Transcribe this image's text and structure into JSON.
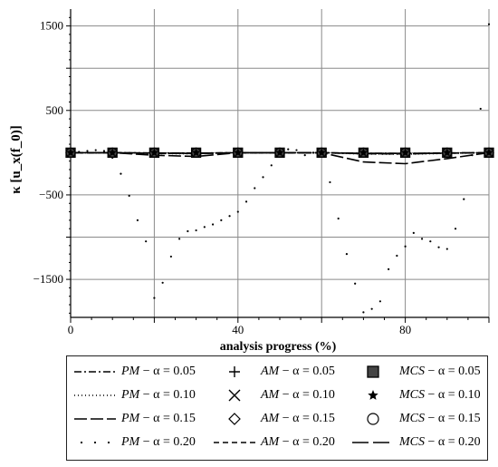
{
  "chart_data": {
    "type": "line",
    "xlabel": "analysis progress (%)",
    "ylabel": "κ [u_x(f_0)]",
    "xlim": [
      0,
      100
    ],
    "ylim": [
      -1950,
      1700
    ],
    "x_ticks": [
      0,
      40,
      80
    ],
    "x_tick_labels": [
      "0",
      "40",
      "80"
    ],
    "x_grid": [
      0,
      20,
      40,
      60,
      80,
      100
    ],
    "y_ticks": [
      1500,
      500,
      -500,
      -1500
    ],
    "y_tick_labels": [
      "1500",
      "500",
      "−500",
      "−1500"
    ],
    "y_grid": [
      1500,
      1000,
      500,
      0,
      -500,
      -1000,
      -1500
    ],
    "grid": true,
    "legend_position": "bottom",
    "series": [
      {
        "name": "PM − α = 0.05",
        "style": "dashdot",
        "x": [
          0,
          10,
          20,
          30,
          40,
          50,
          60,
          70,
          80,
          90,
          100
        ],
        "y": [
          0,
          0,
          -4,
          -6,
          0,
          0,
          0,
          -8,
          -10,
          -4,
          0
        ]
      },
      {
        "name": "PM − α = 0.10",
        "style": "dotted",
        "x": [
          0,
          10,
          20,
          30,
          40,
          50,
          60,
          70,
          80,
          90,
          100
        ],
        "y": [
          0,
          0,
          -10,
          -12,
          0,
          0,
          0,
          -15,
          -18,
          -8,
          0
        ]
      },
      {
        "name": "PM − α = 0.15",
        "style": "longdash",
        "x": [
          0,
          10,
          20,
          30,
          40,
          50,
          60,
          70,
          80,
          90,
          100
        ],
        "y": [
          0,
          0,
          -30,
          -45,
          0,
          0,
          0,
          -110,
          -130,
          -70,
          0
        ]
      },
      {
        "name": "PM − α = 0.20",
        "style": "sparse-dots",
        "x": [
          0,
          2,
          4,
          6,
          8,
          10,
          12,
          14,
          16,
          18,
          20,
          22,
          24,
          26,
          28,
          30,
          32,
          34,
          36,
          38,
          40,
          42,
          44,
          46,
          48,
          50,
          52,
          54,
          56,
          58,
          60,
          62,
          64,
          66,
          68,
          70,
          72,
          74,
          76,
          78,
          80,
          82,
          84,
          86,
          88,
          90,
          92,
          94,
          96,
          98,
          100
        ],
        "y": [
          0,
          10,
          20,
          30,
          20,
          -60,
          -250,
          -510,
          -800,
          -1050,
          -1720,
          -1540,
          -1230,
          -1020,
          -930,
          -920,
          -880,
          -850,
          -800,
          -750,
          -700,
          -580,
          -420,
          -290,
          -150,
          20,
          40,
          30,
          -30,
          0,
          0,
          -350,
          -780,
          -1200,
          -1550,
          -1890,
          -1850,
          -1760,
          -1380,
          -1220,
          -1110,
          -950,
          -1020,
          -1050,
          -1120,
          -1140,
          -900,
          -550,
          -30,
          520,
          1520
        ]
      },
      {
        "name": "AM − α = 0.05",
        "marker": "+",
        "x": [
          0,
          10,
          20,
          30,
          40,
          50,
          60,
          70,
          80,
          90,
          100
        ],
        "y": [
          0,
          0,
          0,
          0,
          0,
          0,
          0,
          0,
          0,
          0,
          0
        ]
      },
      {
        "name": "AM − α = 0.10",
        "marker": "×",
        "x": [
          0,
          10,
          20,
          30,
          40,
          50,
          60,
          70,
          80,
          90,
          100
        ],
        "y": [
          0,
          0,
          0,
          0,
          0,
          0,
          0,
          0,
          0,
          0,
          0
        ]
      },
      {
        "name": "AM − α = 0.15",
        "marker": "◇",
        "x": [
          0,
          10,
          20,
          30,
          40,
          50,
          60,
          70,
          80,
          90,
          100
        ],
        "y": [
          0,
          0,
          0,
          0,
          0,
          0,
          0,
          0,
          0,
          0,
          0
        ]
      },
      {
        "name": "AM − α = 0.20",
        "style": "dash",
        "x": [
          0,
          10,
          20,
          30,
          40,
          50,
          60,
          70,
          80,
          90,
          100
        ],
        "y": [
          0,
          0,
          -5,
          -8,
          0,
          0,
          0,
          -10,
          -12,
          -5,
          0
        ]
      },
      {
        "name": "MCS − α = 0.05",
        "marker": "□",
        "x": [
          0,
          10,
          20,
          30,
          40,
          50,
          60,
          70,
          80,
          90,
          100
        ],
        "y": [
          0,
          0,
          0,
          0,
          0,
          0,
          0,
          0,
          0,
          0,
          0
        ]
      },
      {
        "name": "MCS − α = 0.10",
        "marker": "★",
        "x": [
          0,
          10,
          20,
          30,
          40,
          50,
          60,
          70,
          80,
          90,
          100
        ],
        "y": [
          0,
          0,
          0,
          0,
          0,
          0,
          0,
          0,
          0,
          0,
          0
        ]
      },
      {
        "name": "MCS − α = 0.15",
        "marker": "○",
        "x": [
          0,
          10,
          20,
          30,
          40,
          50,
          60,
          70,
          80,
          90,
          100
        ],
        "y": [
          0,
          0,
          0,
          0,
          0,
          0,
          0,
          0,
          0,
          0,
          0
        ]
      },
      {
        "name": "MCS − α = 0.20",
        "style": "longdash",
        "x": [
          0,
          10,
          20,
          30,
          40,
          50,
          60,
          70,
          80,
          90,
          100
        ],
        "y": [
          0,
          0,
          -8,
          -10,
          0,
          0,
          0,
          -12,
          -14,
          -6,
          0
        ]
      }
    ]
  },
  "legend": [
    {
      "method": "PM",
      "alpha": "0.05",
      "symbol": "dashdot"
    },
    {
      "method": "AM",
      "alpha": "0.05",
      "symbol": "plus"
    },
    {
      "method": "MCS",
      "alpha": "0.05",
      "symbol": "square"
    },
    {
      "method": "PM",
      "alpha": "0.10",
      "symbol": "dotted"
    },
    {
      "method": "AM",
      "alpha": "0.10",
      "symbol": "cross"
    },
    {
      "method": "MCS",
      "alpha": "0.10",
      "symbol": "star"
    },
    {
      "method": "PM",
      "alpha": "0.15",
      "symbol": "longdash"
    },
    {
      "method": "AM",
      "alpha": "0.15",
      "symbol": "diamond"
    },
    {
      "method": "MCS",
      "alpha": "0.15",
      "symbol": "circle"
    },
    {
      "method": "PM",
      "alpha": "0.20",
      "symbol": "sparse-dots"
    },
    {
      "method": "AM",
      "alpha": "0.20",
      "symbol": "dash"
    },
    {
      "method": "MCS",
      "alpha": "0.20",
      "symbol": "longdash2"
    }
  ],
  "colors": {
    "ink": "#000000",
    "grid": "#8a8a8a"
  }
}
